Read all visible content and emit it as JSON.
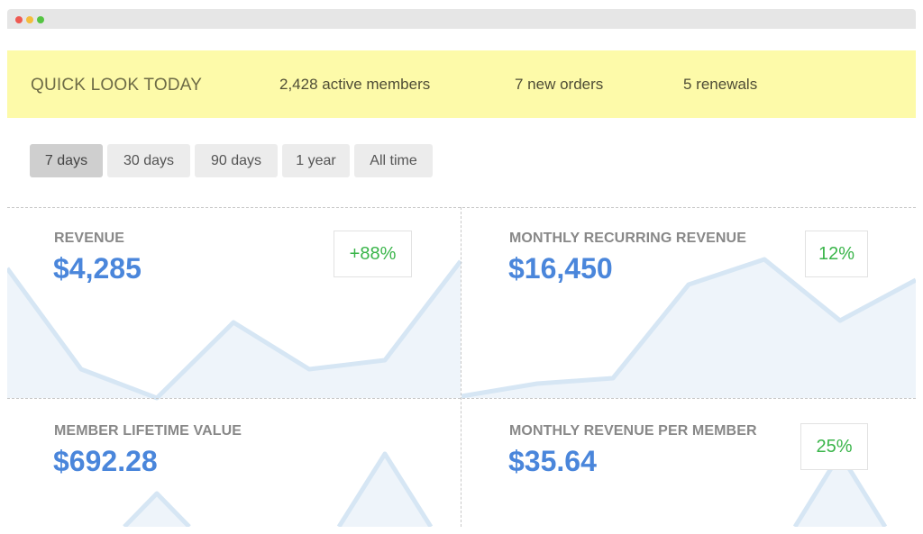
{
  "quick_look": {
    "title": "QUICK LOOK TODAY",
    "active_members": "2,428 active members",
    "new_orders": "7 new orders",
    "renewals": "5 renewals"
  },
  "time_ranges": [
    {
      "label": "7 days",
      "active": true
    },
    {
      "label": "30 days",
      "active": false
    },
    {
      "label": "90 days",
      "active": false
    },
    {
      "label": "1 year",
      "active": false
    },
    {
      "label": "All time",
      "active": false
    }
  ],
  "cards": [
    {
      "label": "REVENUE",
      "value": "$4,285",
      "change": "+88%"
    },
    {
      "label": "MONTHLY RECURRING REVENUE",
      "value": "$16,450",
      "change": "12%"
    },
    {
      "label": "MEMBER LIFETIME VALUE",
      "value": "$692.28",
      "change": ""
    },
    {
      "label": "MONTHLY REVENUE PER MEMBER",
      "value": "$35.64",
      "change": "25%"
    }
  ],
  "colors": {
    "accent_value": "#4a86db",
    "positive_change": "#3ab54a",
    "quick_look_bg": "#fdfaa9",
    "sparkline_line": "#d6e6f4",
    "sparkline_fill": "#eef4fa"
  }
}
